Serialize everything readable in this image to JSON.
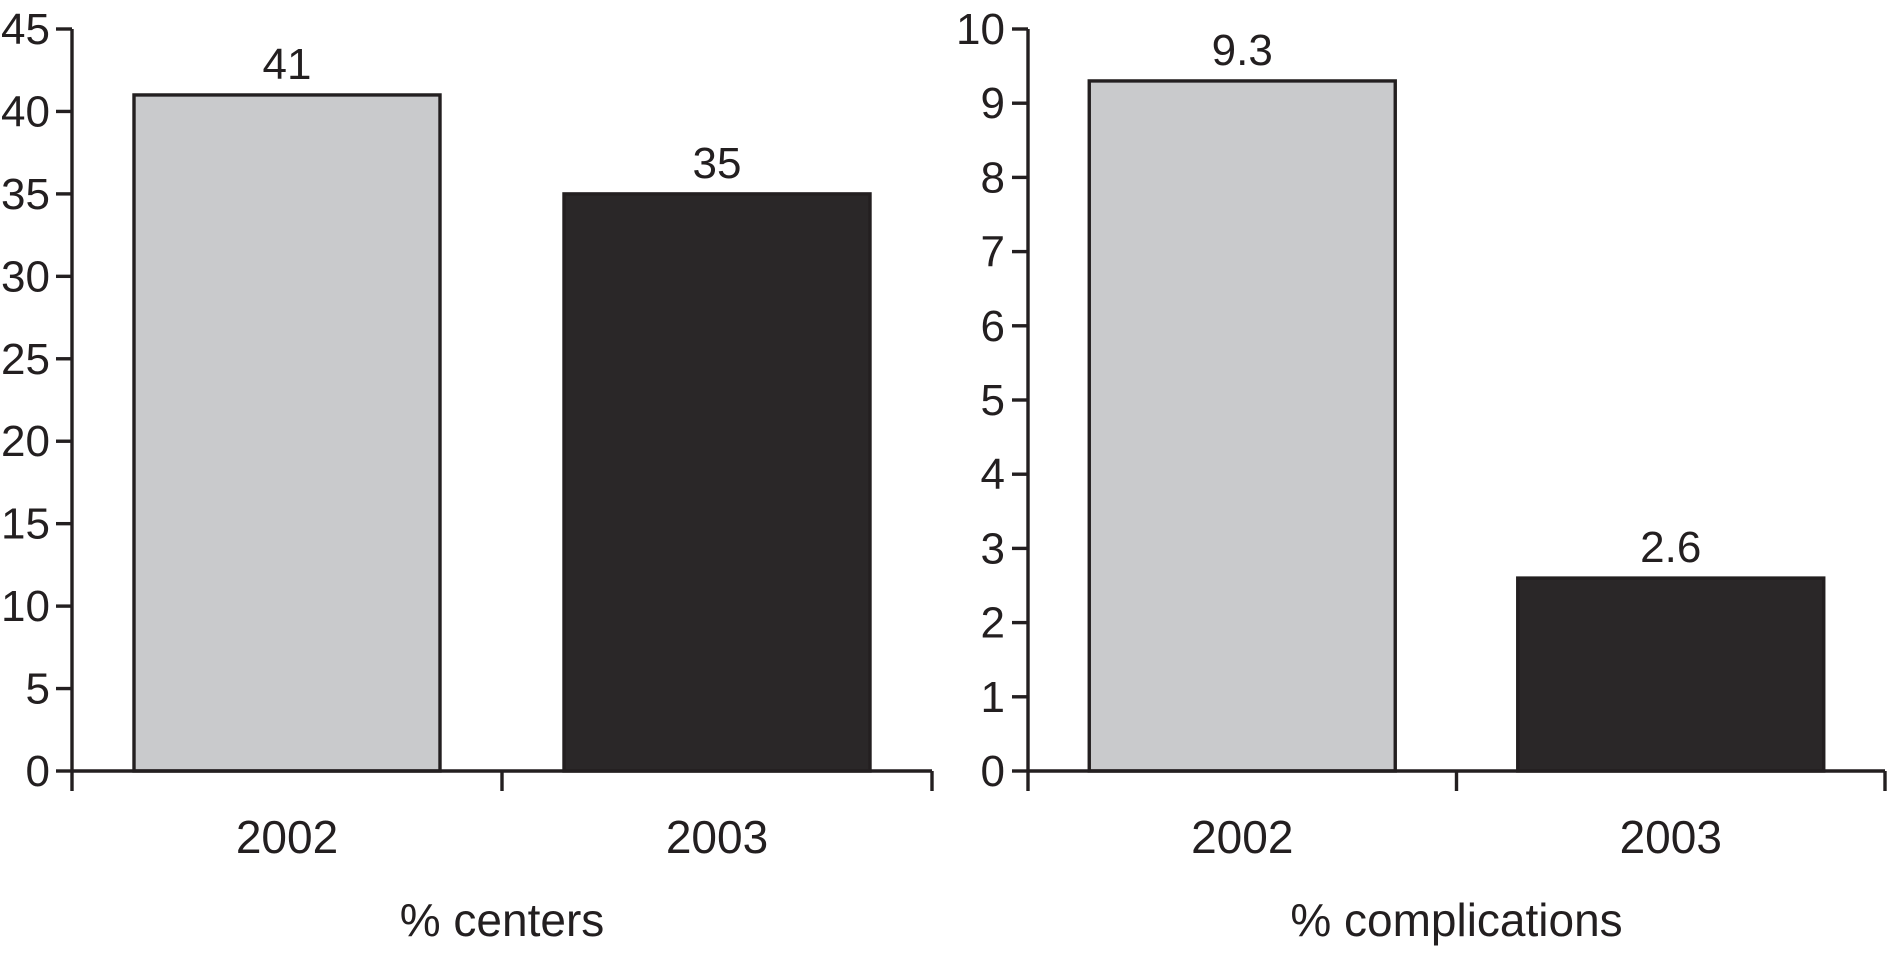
{
  "figure": {
    "background": "#ffffff"
  },
  "colors": {
    "axis": "#231f20",
    "text": "#231f20",
    "bar_light": "#c9cacc",
    "bar_dark": "#2a2728"
  },
  "chart_data": [
    {
      "type": "bar",
      "xlabel": "% centers",
      "categories": [
        "2002",
        "2003"
      ],
      "values": [
        41,
        35
      ],
      "value_labels": [
        "41",
        "35"
      ],
      "series_colors": [
        "#c9cacc",
        "#2a2728"
      ],
      "ylim": [
        0,
        45
      ],
      "ytick_step": 5,
      "yticks": [
        0,
        5,
        10,
        15,
        20,
        25,
        30,
        35,
        40,
        45
      ],
      "grid": false,
      "legend": false
    },
    {
      "type": "bar",
      "xlabel": "% complications",
      "categories": [
        "2002",
        "2003"
      ],
      "values": [
        9.3,
        2.6
      ],
      "value_labels": [
        "9.3",
        "2.6"
      ],
      "series_colors": [
        "#c9cacc",
        "#2a2728"
      ],
      "ylim": [
        0,
        10
      ],
      "ytick_step": 1,
      "yticks": [
        0,
        1,
        2,
        3,
        4,
        5,
        6,
        7,
        8,
        9,
        10
      ],
      "grid": false,
      "legend": false
    }
  ]
}
